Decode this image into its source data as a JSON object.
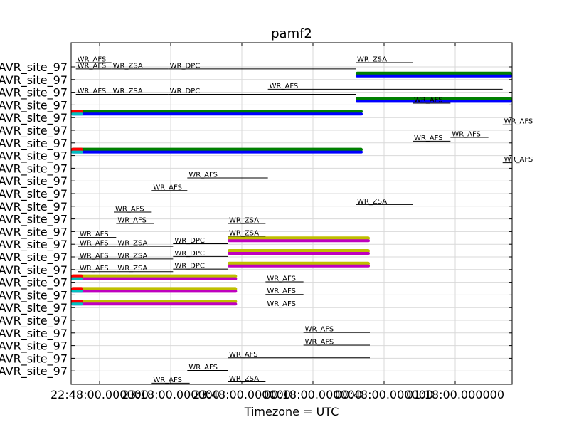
{
  "chart_data": {
    "type": "timeline",
    "title": "pamf2",
    "xlabel": "Timezone = UTC",
    "ylabel": "",
    "grid": true,
    "xlim": [
      "22:36:00",
      "01:42:00"
    ],
    "xticks": [
      "22:48:00.000000",
      "23:18:00.000000",
      "23:48:00.000000",
      "00:18:00.000000",
      "00:48:00.000000",
      "01:18:00.000000"
    ],
    "ytick_labels": [
      "AVR_site_97",
      "AVR_site_97",
      "AVR_site_97",
      "AVR_site_97",
      "AVR_site_97",
      "AVR_site_97",
      "AVR_site_97",
      "AVR_site_97",
      "AVR_site_97",
      "AVR_site_97",
      "AVR_site_97",
      "AVR_site_97",
      "AVR_site_97",
      "AVR_site_97",
      "AVR_site_97",
      "AVR_site_97",
      "AVR_site_97",
      "AVR_site_97",
      "AVR_site_97",
      "AVR_site_97",
      "AVR_site_97",
      "AVR_site_97",
      "AVR_site_97",
      "AVR_site_97",
      "AVR_site_97"
    ],
    "bars": [
      {
        "start": "00:36:00",
        "end": "01:42:00",
        "row": 1,
        "colors": [
          "#008000",
          "#0000ff"
        ]
      },
      {
        "start": "00:36:00",
        "end": "01:42:00",
        "row": 3,
        "colors": [
          "#008000",
          "#0000ff"
        ]
      },
      {
        "start": "22:36:00",
        "end": "00:39:00",
        "row": 4,
        "colors": [
          "#008000",
          "#0000ff"
        ]
      },
      {
        "start": "22:36:00",
        "end": "22:41:00",
        "row": 4,
        "colors": [
          "#ff0000",
          "#00bfbf"
        ]
      },
      {
        "start": "22:36:00",
        "end": "00:39:00",
        "row": 7,
        "colors": [
          "#008000",
          "#0000ff"
        ]
      },
      {
        "start": "22:36:00",
        "end": "22:41:00",
        "row": 7,
        "colors": [
          "#ff0000",
          "#00bfbf"
        ]
      },
      {
        "start": "23:42:00",
        "end": "00:42:00",
        "row": 14,
        "colors": [
          "#bfbf00",
          "#bf00bf"
        ]
      },
      {
        "start": "23:42:00",
        "end": "00:42:00",
        "row": 15,
        "colors": [
          "#bfbf00",
          "#bf00bf"
        ]
      },
      {
        "start": "23:42:00",
        "end": "00:42:00",
        "row": 16,
        "colors": [
          "#bfbf00",
          "#bf00bf"
        ]
      },
      {
        "start": "22:36:00",
        "end": "23:46:00",
        "row": 17,
        "colors": [
          "#bfbf00",
          "#bf00bf"
        ]
      },
      {
        "start": "22:36:00",
        "end": "22:41:00",
        "row": 17,
        "colors": [
          "#ff0000",
          "#00bfbf"
        ]
      },
      {
        "start": "22:36:00",
        "end": "23:46:00",
        "row": 18,
        "colors": [
          "#bfbf00",
          "#bf00bf"
        ]
      },
      {
        "start": "22:36:00",
        "end": "22:41:00",
        "row": 18,
        "colors": [
          "#ff0000",
          "#00bfbf"
        ]
      },
      {
        "start": "22:36:00",
        "end": "23:46:00",
        "row": 19,
        "colors": [
          "#bfbf00",
          "#bf00bf"
        ]
      },
      {
        "start": "22:36:00",
        "end": "22:41:00",
        "row": 19,
        "colors": [
          "#ff0000",
          "#00bfbf"
        ]
      }
    ],
    "annotations": [
      {
        "text": "WR_AFS",
        "start": "22:38:00",
        "end": "22:53:00",
        "row": 0
      },
      {
        "text": "WR_AFS",
        "start": "22:38:00",
        "end": "22:53:00",
        "row": 0.5
      },
      {
        "text": "WR_ZSA",
        "start": "22:53:00",
        "end": "23:17:00",
        "row": 0.5
      },
      {
        "text": "WR_DPC",
        "start": "23:17:00",
        "end": "00:36:00",
        "row": 0.5
      },
      {
        "text": "WR_ZSA",
        "start": "00:36:00",
        "end": "01:00:00",
        "row": 0
      },
      {
        "text": "WR_AFS",
        "start": "22:38:00",
        "end": "22:53:00",
        "row": 2.5
      },
      {
        "text": "WR_ZSA",
        "start": "22:53:00",
        "end": "23:17:00",
        "row": 2.5
      },
      {
        "text": "WR_DPC",
        "start": "23:17:00",
        "end": "00:36:00",
        "row": 2.5
      },
      {
        "text": "WR_AFS",
        "start": "23:59:00",
        "end": "01:38:00",
        "row": 2.1
      },
      {
        "text": "WR_AFS",
        "start": "01:00:00",
        "end": "01:16:00",
        "row": 3.2
      },
      {
        "text": "WR_AFS",
        "start": "01:38:00",
        "end": "01:50:00",
        "row": 4.9
      },
      {
        "text": "WR_AFS",
        "start": "01:16:00",
        "end": "01:32:00",
        "row": 5.9
      },
      {
        "text": "WR_AFS",
        "start": "01:00:00",
        "end": "01:16:00",
        "row": 6.2
      },
      {
        "text": "WR_AFS",
        "start": "01:38:00",
        "end": "01:50:00",
        "row": 7.9
      },
      {
        "text": "WR_AFS",
        "start": "23:25:00",
        "end": "23:59:00",
        "row": 9.1
      },
      {
        "text": "WR_AFS",
        "start": "23:10:00",
        "end": "23:25:00",
        "row": 10.1
      },
      {
        "text": "WR_ZSA",
        "start": "00:36:00",
        "end": "01:00:00",
        "row": 11.2
      },
      {
        "text": "WR_AFS",
        "start": "22:54:00",
        "end": "23:10:00",
        "row": 11.8
      },
      {
        "text": "WR_AFS",
        "start": "22:55:00",
        "end": "23:11:00",
        "row": 12.7
      },
      {
        "text": "WR_ZSA",
        "start": "23:42:00",
        "end": "23:58:00",
        "row": 12.7
      },
      {
        "text": "WR_ZSA",
        "start": "23:42:00",
        "end": "23:58:00",
        "row": 13.7
      },
      {
        "text": "WR_AFS",
        "start": "22:39:00",
        "end": "22:55:00",
        "row": 13.8
      },
      {
        "text": "WR_AFS",
        "start": "22:39:00",
        "end": "22:55:00",
        "row": 14.5
      },
      {
        "text": "WR_ZSA",
        "start": "22:55:00",
        "end": "23:19:00",
        "row": 14.5
      },
      {
        "text": "WR_DPC",
        "start": "23:19:00",
        "end": "23:42:00",
        "row": 14.3
      },
      {
        "text": "WR_AFS",
        "start": "22:39:00",
        "end": "22:55:00",
        "row": 15.5
      },
      {
        "text": "WR_ZSA",
        "start": "22:55:00",
        "end": "23:19:00",
        "row": 15.5
      },
      {
        "text": "WR_DPC",
        "start": "23:19:00",
        "end": "23:42:00",
        "row": 15.3
      },
      {
        "text": "WR_AFS",
        "start": "22:39:00",
        "end": "22:55:00",
        "row": 16.5
      },
      {
        "text": "WR_ZSA",
        "start": "22:55:00",
        "end": "23:19:00",
        "row": 16.5
      },
      {
        "text": "WR_DPC",
        "start": "23:19:00",
        "end": "23:42:00",
        "row": 16.3
      },
      {
        "text": "WR_AFS",
        "start": "23:58:00",
        "end": "00:14:00",
        "row": 17.3
      },
      {
        "text": "WR_AFS",
        "start": "23:58:00",
        "end": "00:14:00",
        "row": 18.3
      },
      {
        "text": "WR_AFS",
        "start": "23:58:00",
        "end": "00:14:00",
        "row": 19.3
      },
      {
        "text": "WR_AFS",
        "start": "00:14:00",
        "end": "00:42:00",
        "row": 21.3
      },
      {
        "text": "WR_AFS",
        "start": "00:14:00",
        "end": "00:42:00",
        "row": 22.3
      },
      {
        "text": "WR_AFS",
        "start": "23:42:00",
        "end": "00:42:00",
        "row": 23.3
      },
      {
        "text": "WR_AFS",
        "start": "23:25:00",
        "end": "23:42:00",
        "row": 24.3
      },
      {
        "text": "WR_AFS",
        "start": "23:10:00",
        "end": "23:26:00",
        "row": 25.3
      },
      {
        "text": "WR_ZSA",
        "start": "23:42:00",
        "end": "23:58:00",
        "row": 25.2
      }
    ]
  }
}
